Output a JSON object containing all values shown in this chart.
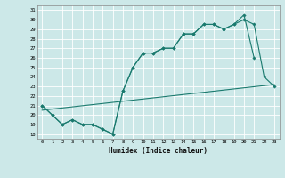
{
  "title": "",
  "xlabel": "Humidex (Indice chaleur)",
  "bg_color": "#cce8e8",
  "grid_color": "#ffffff",
  "line_color": "#1a7a6e",
  "xlim": [
    -0.5,
    23.5
  ],
  "ylim": [
    17.5,
    31.5
  ],
  "yticks": [
    18,
    19,
    20,
    21,
    22,
    23,
    24,
    25,
    26,
    27,
    28,
    29,
    30,
    31
  ],
  "xticks": [
    0,
    1,
    2,
    3,
    4,
    5,
    6,
    7,
    8,
    9,
    10,
    11,
    12,
    13,
    14,
    15,
    16,
    17,
    18,
    19,
    20,
    21,
    22,
    23
  ],
  "line1_x": [
    0,
    1,
    2,
    3,
    4,
    5,
    6,
    7,
    8,
    9,
    10,
    11,
    12,
    13,
    14,
    15,
    16,
    17,
    18,
    19,
    20,
    21
  ],
  "line1_y": [
    21,
    20,
    19,
    19.5,
    19,
    19,
    18.5,
    18,
    22.5,
    25,
    26.5,
    26.5,
    27,
    27,
    28.5,
    28.5,
    29.5,
    29.5,
    29,
    29.5,
    30.5,
    26
  ],
  "line2_x": [
    0,
    1,
    2,
    3,
    4,
    5,
    6,
    7,
    8,
    9,
    10,
    11,
    12,
    13,
    14,
    15,
    16,
    17,
    18,
    19,
    20,
    21,
    22,
    23
  ],
  "line2_y": [
    21,
    20,
    19,
    19.5,
    19,
    19,
    18.5,
    18,
    22.5,
    25,
    26.5,
    26.5,
    27,
    27,
    28.5,
    28.5,
    29.5,
    29.5,
    29,
    29.5,
    30,
    29.5,
    24,
    23
  ],
  "line3_x": [
    0,
    23
  ],
  "line3_y": [
    20.5,
    23.2
  ]
}
